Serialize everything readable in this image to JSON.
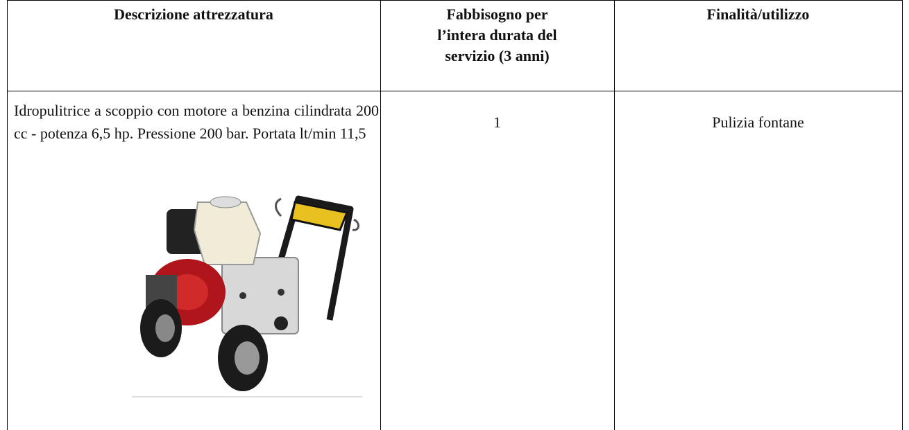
{
  "table": {
    "headers": [
      "Descrizione attrezzatura",
      "Fabbisogno per l’intera durata del servizio (3 anni)",
      "Finalità/utilizzo"
    ],
    "rows": [
      [
        "Idropulitrice a scoppio con motore a benzina cilindrata 200 cc - potenza 6,5 hp. Pressione 200 bar. Portata lt/min 11,5",
        "1",
        "Pulizia fontane"
      ]
    ]
  }
}
